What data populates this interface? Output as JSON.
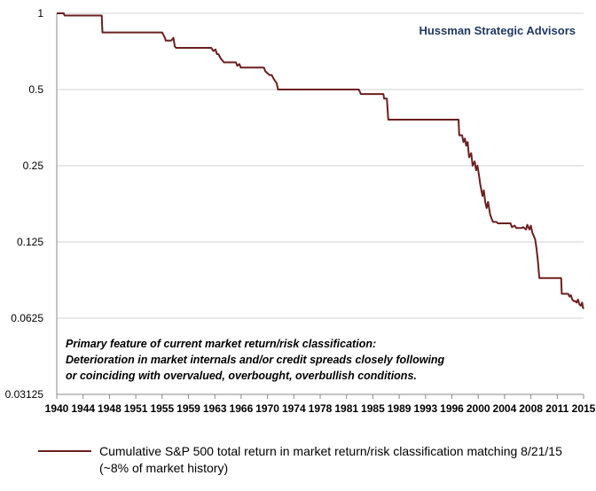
{
  "chart_data": {
    "type": "line",
    "title": "",
    "xlabel": "",
    "ylabel": "",
    "y_scale": "log2",
    "xlim": [
      1940,
      2015
    ],
    "ylim": [
      0.03125,
      1
    ],
    "grid": "horizontal",
    "y_ticks": [
      "1",
      "0.5",
      "0.25",
      "0.125",
      "0.0625",
      "0.03125"
    ],
    "y_tick_values": [
      1,
      0.5,
      0.25,
      0.125,
      0.0625,
      0.03125
    ],
    "x_ticks": [
      "1940",
      "1944",
      "1948",
      "1951",
      "1955",
      "1959",
      "1963",
      "1966",
      "1970",
      "1974",
      "1978",
      "1981",
      "1985",
      "1989",
      "1993",
      "1996",
      "2000",
      "2004",
      "2008",
      "2011",
      "2015"
    ],
    "watermark": "Hussman Strategic Advisors",
    "annotation": [
      "Primary feature of current market return/risk classification:",
      "Deterioration in market internals and/or credit spreads closely following",
      "or coinciding with overvalued, overbought, overbullish conditions."
    ],
    "legend": {
      "placement": "bottom",
      "line1": "Cumulative S&P 500 total return in market return/risk classification matching 8/21/15",
      "line2": "(~8% of market history)"
    },
    "line_color": "#6b1f1f",
    "series": [
      {
        "x": [
          1940.0,
          1941.0,
          1941.1,
          1946.4,
          1946.5,
          1955.0,
          1955.4,
          1955.5,
          1956.3,
          1956.6,
          1956.8,
          1957.0,
          1957.2,
          1962.0,
          1962.3,
          1962.6,
          1962.8,
          1963.0,
          1963.4,
          1963.6,
          1963.8,
          1965.5,
          1965.7,
          1966.0,
          1966.2,
          1966.4,
          1969.5,
          1969.7,
          1970.0,
          1970.3,
          1970.6,
          1970.9,
          1971.3,
          1971.5,
          1971.7,
          1983.0,
          1983.3,
          1986.5,
          1986.6,
          1987.0,
          1987.2,
          1996.8,
          1997.2,
          1997.3,
          1997.7,
          1997.9,
          1998.1,
          1998.3,
          1998.5,
          1998.7,
          1999.0,
          1999.2,
          1999.5,
          1999.7,
          1999.9,
          2000.1,
          2000.3,
          2000.6,
          2000.8,
          2001.0,
          2001.2,
          2001.4,
          2001.7,
          2001.9,
          2002.1,
          2002.3,
          2002.6,
          2002.8,
          2004.6,
          2004.8,
          2005.2,
          2005.4,
          2006.2,
          2006.4,
          2006.8,
          2007.0,
          2007.3,
          2007.5,
          2007.7,
          2007.9,
          2008.1,
          2008.3,
          2008.5,
          2008.7,
          2008.8,
          2011.8,
          2011.9,
          2012.8,
          2013.0,
          2013.2,
          2013.4,
          2013.6,
          2013.8,
          2014.0,
          2014.2,
          2014.4,
          2014.6,
          2014.8,
          2014.9,
          2015.0
        ],
        "y": [
          1.0,
          1.0,
          0.98,
          0.98,
          0.84,
          0.84,
          0.8,
          0.78,
          0.78,
          0.8,
          0.74,
          0.73,
          0.73,
          0.73,
          0.71,
          0.72,
          0.69,
          0.69,
          0.66,
          0.65,
          0.64,
          0.64,
          0.62,
          0.63,
          0.61,
          0.61,
          0.61,
          0.59,
          0.58,
          0.57,
          0.57,
          0.55,
          0.53,
          0.5,
          0.5,
          0.5,
          0.48,
          0.48,
          0.46,
          0.46,
          0.38,
          0.38,
          0.38,
          0.33,
          0.33,
          0.31,
          0.32,
          0.3,
          0.31,
          0.27,
          0.28,
          0.25,
          0.26,
          0.24,
          0.25,
          0.23,
          0.21,
          0.19,
          0.2,
          0.18,
          0.17,
          0.18,
          0.16,
          0.155,
          0.15,
          0.15,
          0.15,
          0.148,
          0.148,
          0.143,
          0.145,
          0.142,
          0.142,
          0.143,
          0.14,
          0.146,
          0.14,
          0.145,
          0.136,
          0.132,
          0.128,
          0.118,
          0.105,
          0.09,
          0.09,
          0.09,
          0.078,
          0.078,
          0.076,
          0.077,
          0.074,
          0.073,
          0.073,
          0.072,
          0.074,
          0.071,
          0.07,
          0.072,
          0.069,
          0.068
        ]
      }
    ]
  }
}
